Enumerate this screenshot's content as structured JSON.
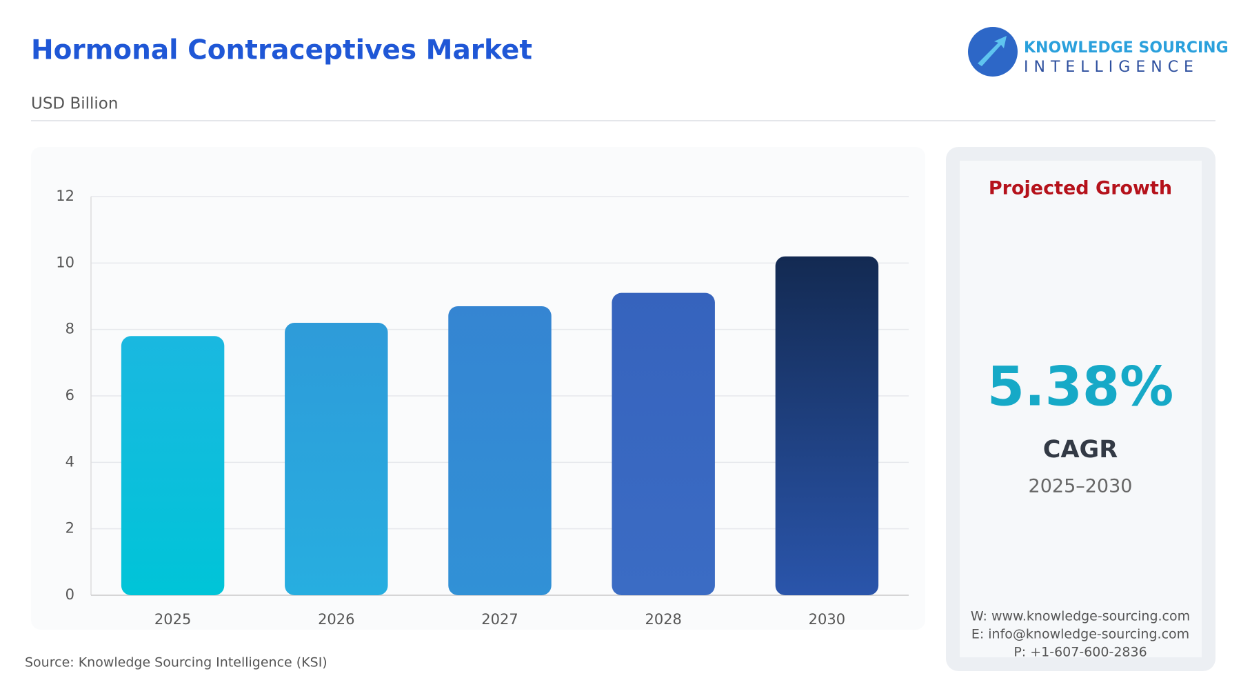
{
  "chart_data": {
    "type": "bar",
    "title": "Hormonal Contraceptives Market",
    "subtitle": "USD Billion",
    "categories": [
      "2025",
      "2026",
      "2027",
      "2028",
      "2030"
    ],
    "values": [
      7.8,
      8.2,
      8.7,
      9.1,
      10.2
    ],
    "colors": [
      [
        "#1ab8e0",
        "#00c4d8"
      ],
      [
        "#2e9bd9",
        "#27aee0"
      ],
      [
        "#3585d2",
        "#3191d6"
      ],
      [
        "#3663bd",
        "#3b6cc4"
      ],
      [
        "#132a52",
        "#2a55ab"
      ]
    ],
    "ylim": [
      0,
      12
    ],
    "yticks": [
      0,
      2,
      4,
      6,
      8,
      10,
      12
    ],
    "grid": true,
    "source": "Source: Knowledge Sourcing Intelligence (KSI)"
  },
  "logo": {
    "line1": "KNOWLEDGE SOURCING",
    "line2": "INTELLIGENCE"
  },
  "panel": {
    "heading": "Projected Growth",
    "value": "5.38%",
    "label": "CAGR",
    "period": "2025–2030",
    "website": "W: www.knowledge-sourcing.com",
    "email": "E: info@knowledge-sourcing.com",
    "phone": "P: +1-607-600-2836"
  }
}
